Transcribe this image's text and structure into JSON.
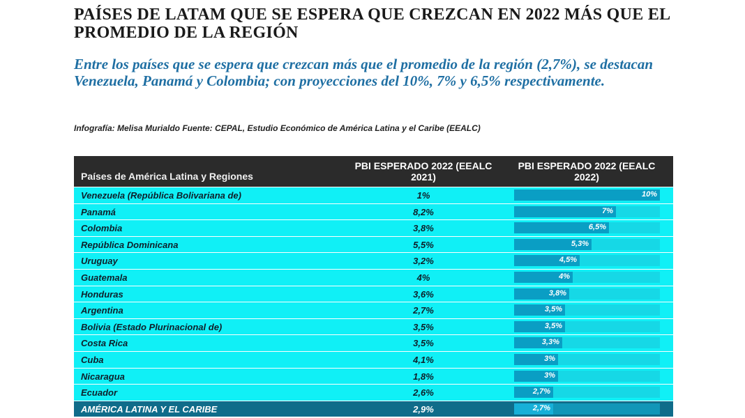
{
  "header": {
    "title": "PAÍSES DE LATAM QUE SE ESPERA QUE CREZCAN EN 2022 MÁS QUE EL PROMEDIO DE LA REGIÓN",
    "subtitle": "Entre los países que se espera que crezcan más que el promedio de la región (2,7%), se destacan Venezuela, Panamá y Colombia; con proyecciones del 10%, 7% y 6,5% respectivamente.",
    "credit": "Infografía: Melisa Murialdo Fuente: CEPAL, Estudio Económico de América Latina y el Caribe (EEALC)"
  },
  "table": {
    "columns": [
      "Países de América Latina y Regiones",
      "PBI ESPERADO 2022 (EEALC 2021)",
      "PBI ESPERADO 2022 (EEALC 2022)"
    ],
    "bar_max": 10,
    "rows": [
      {
        "name": "Venezuela (República Bolivariana de)",
        "v2021": "1%",
        "v2022": "10%",
        "value": 10
      },
      {
        "name": "Panamá",
        "v2021": "8,2%",
        "v2022": "7%",
        "value": 7
      },
      {
        "name": "Colombia",
        "v2021": "3,8%",
        "v2022": "6,5%",
        "value": 6.5
      },
      {
        "name": "República Dominicana",
        "v2021": "5,5%",
        "v2022": "5,3%",
        "value": 5.3
      },
      {
        "name": "Uruguay",
        "v2021": "3,2%",
        "v2022": "4,5%",
        "value": 4.5
      },
      {
        "name": "Guatemala",
        "v2021": "4%",
        "v2022": "4%",
        "value": 4
      },
      {
        "name": "Honduras",
        "v2021": "3,6%",
        "v2022": "3,8%",
        "value": 3.8
      },
      {
        "name": "Argentina",
        "v2021": "2,7%",
        "v2022": "3,5%",
        "value": 3.5
      },
      {
        "name": "Bolivia (Estado Plurinacional de)",
        "v2021": "3,5%",
        "v2022": "3,5%",
        "value": 3.5
      },
      {
        "name": "Costa Rica",
        "v2021": "3,5%",
        "v2022": "3,3%",
        "value": 3.3
      },
      {
        "name": "Cuba",
        "v2021": "4,1%",
        "v2022": "3%",
        "value": 3
      },
      {
        "name": "Nicaragua",
        "v2021": "1,8%",
        "v2022": "3%",
        "value": 3
      },
      {
        "name": "Ecuador",
        "v2021": "2,6%",
        "v2022": "2,7%",
        "value": 2.7
      }
    ],
    "total": {
      "name": "AMÉRICA LATINA Y EL CARIBE",
      "v2021": "2,9%",
      "v2022": "2,7%",
      "value": 2.7
    }
  },
  "colors": {
    "row_bg": "#10f0f6",
    "header_bg": "#2b2b2b",
    "bar": "#0a9ec4",
    "total_bg": "#0f6c8a",
    "subtitle": "#1f6fa3"
  }
}
